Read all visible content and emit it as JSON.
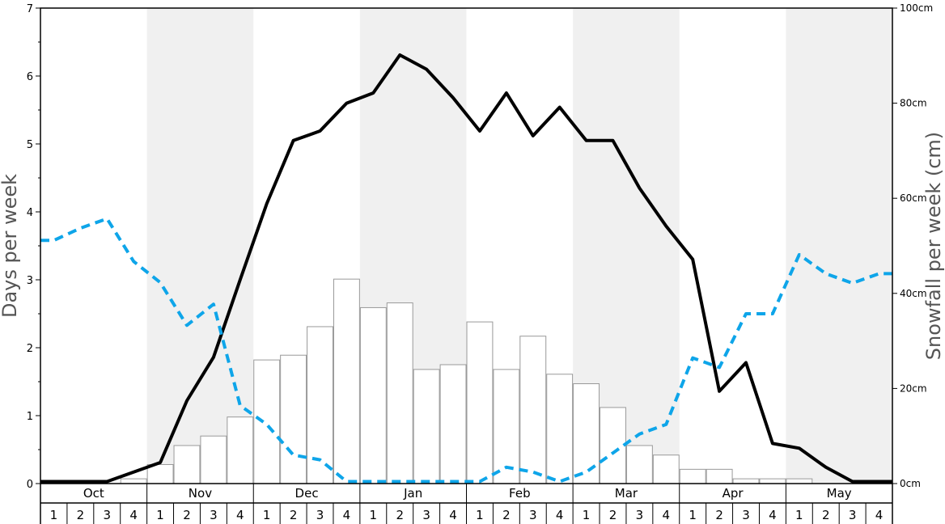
{
  "chart_data": {
    "type": "bar+line",
    "left_axis": {
      "label": "Days per week",
      "ylim": [
        0,
        7
      ],
      "ticks": [
        0,
        1,
        2,
        3,
        4,
        5,
        6,
        7
      ]
    },
    "right_axis": {
      "label": "Snowfall per week (cm)",
      "ylim": [
        0,
        100
      ],
      "ticks": [
        "0cm",
        "20cm",
        "40cm",
        "60cm",
        "80cm",
        "100cm"
      ]
    },
    "months": [
      "Oct",
      "Nov",
      "Dec",
      "Jan",
      "Feb",
      "Mar",
      "Apr",
      "May"
    ],
    "weeks": [
      "1",
      "2",
      "3",
      "4"
    ],
    "shaded_months": [
      "Nov",
      "Jan",
      "Mar",
      "May"
    ],
    "colors": {
      "bars": "#ffffff",
      "bar_edge": "#999999",
      "line_solid": "#000000",
      "line_dashed": "#0ea5e9",
      "shade": "#f0f0f0"
    },
    "series": [
      {
        "style": "bars",
        "axis": "right",
        "values": [
          0,
          0,
          0,
          1,
          4,
          8,
          10,
          14,
          26,
          27,
          33,
          43,
          37,
          38,
          24,
          25,
          34,
          24,
          31,
          23,
          21,
          16,
          8,
          6,
          3,
          3,
          1,
          1,
          1,
          0,
          0,
          0
        ]
      },
      {
        "style": "solid",
        "axis": "left",
        "values": [
          0.03,
          0.03,
          0.03,
          0.17,
          0.31,
          1.22,
          1.86,
          3.0,
          4.12,
          5.05,
          5.19,
          5.6,
          5.75,
          6.31,
          6.1,
          5.68,
          5.19,
          5.75,
          5.12,
          5.54,
          5.05,
          5.05,
          4.35,
          3.79,
          3.3,
          1.36,
          1.78,
          0.59,
          0.52,
          0.24,
          0.03,
          0.03
        ]
      },
      {
        "style": "dashed",
        "axis": "left",
        "values": [
          3.58,
          3.76,
          3.9,
          3.27,
          2.96,
          2.33,
          2.64,
          1.15,
          0.87,
          0.42,
          0.35,
          0.03,
          0.03,
          0.03,
          0.03,
          0.03,
          0.03,
          0.24,
          0.17,
          0.03,
          0.17,
          0.45,
          0.73,
          0.87,
          1.85,
          1.71,
          2.5,
          2.5,
          3.37,
          3.09,
          2.95,
          3.09
        ]
      }
    ]
  }
}
